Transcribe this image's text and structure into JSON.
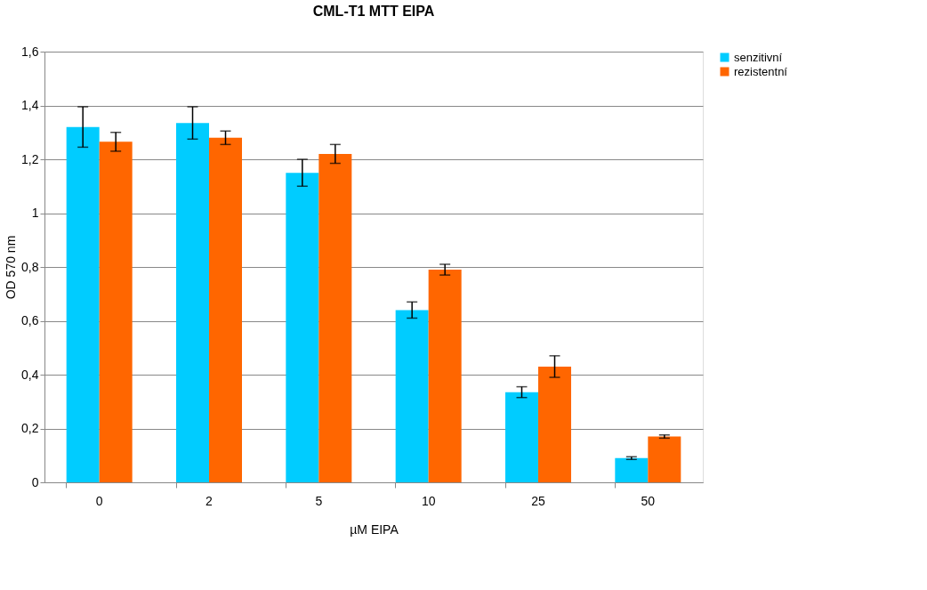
{
  "chart_data": {
    "type": "bar",
    "title": "CML-T1 MTT EIPA",
    "xlabel": "µM EIPA",
    "ylabel": "OD 570 nm",
    "categories": [
      "0",
      "2",
      "5",
      "10",
      "25",
      "50"
    ],
    "series": [
      {
        "name": "senzitivní",
        "color": "#00ccff",
        "values": [
          1.32,
          1.335,
          1.15,
          0.64,
          0.335,
          0.09
        ],
        "errors": [
          0.075,
          0.06,
          0.05,
          0.03,
          0.02,
          0.005
        ]
      },
      {
        "name": "rezistentní",
        "color": "#ff6600",
        "values": [
          1.265,
          1.28,
          1.22,
          0.79,
          0.43,
          0.17
        ],
        "errors": [
          0.035,
          0.025,
          0.035,
          0.02,
          0.04,
          0.006
        ]
      }
    ],
    "ylim": [
      0,
      1.6
    ],
    "yticks": [
      0,
      {
        "value": 0.2,
        "label": "0,2"
      },
      {
        "value": 0.4,
        "label": "0,4"
      },
      {
        "value": 0.6,
        "label": "0,6"
      },
      {
        "value": 0.8,
        "label": "0,8"
      },
      1,
      {
        "value": 1.2,
        "label": "1,2"
      },
      {
        "value": 1.4,
        "label": "1,4"
      },
      {
        "value": 1.6,
        "label": "1,6"
      }
    ],
    "grid": "y",
    "legend": "right"
  }
}
